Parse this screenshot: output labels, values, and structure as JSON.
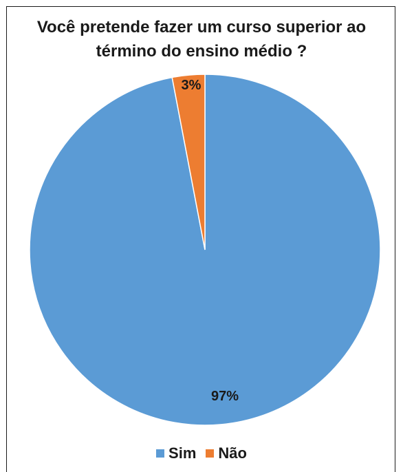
{
  "colors": {
    "sim": "#5b9bd5",
    "nao": "#ed7d31"
  },
  "chart_data": {
    "type": "pie",
    "title": "Você pretende fazer um curso superior ao término do ensino médio ?",
    "title_lines": [
      "Você pretende fazer um curso superior ao",
      "término do ensino médio ?"
    ],
    "categories": [
      "Sim",
      "Não"
    ],
    "values": [
      97,
      3
    ],
    "data_labels": [
      "97%",
      "3%"
    ],
    "legend_position": "bottom"
  }
}
